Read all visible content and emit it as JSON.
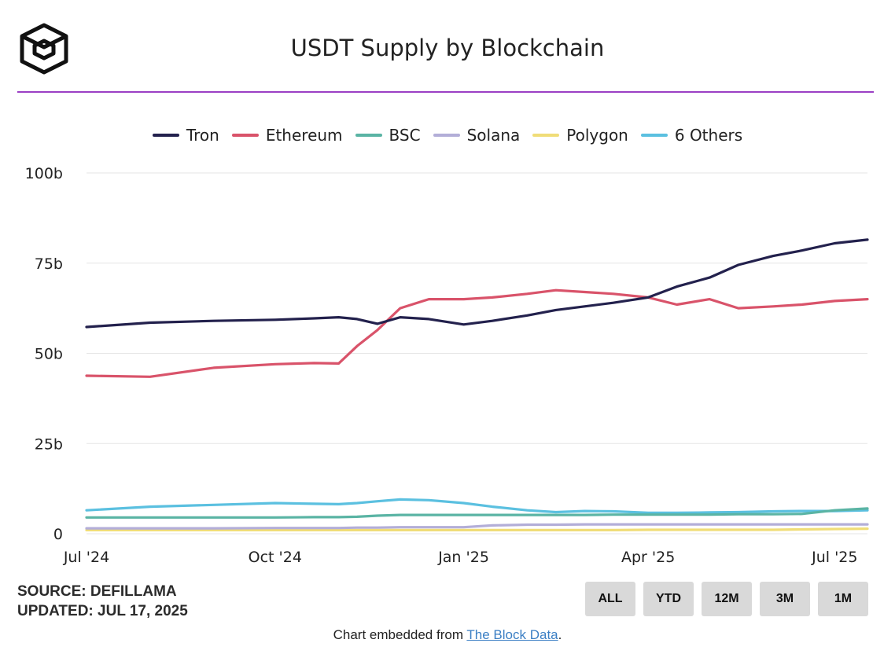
{
  "header": {
    "title": "USDT Supply by Blockchain"
  },
  "source": {
    "line1": "SOURCE: DEFILLAMA",
    "line2": "UPDATED: JUL 17, 2025"
  },
  "range_buttons": [
    "ALL",
    "YTD",
    "12M",
    "3M",
    "1M"
  ],
  "footer": {
    "prefix": "Chart embedded from ",
    "link_text": "The Block Data",
    "suffix": "."
  },
  "colors": {
    "accent_rule": "#9b3fc4",
    "gridline": "#e6e6e6"
  },
  "chart_data": {
    "type": "line",
    "title": "USDT Supply by Blockchain",
    "xlabel": "",
    "ylabel": "",
    "ylim": [
      0,
      100
    ],
    "y_ticks": [
      0,
      25,
      50,
      75,
      100
    ],
    "y_tick_labels": [
      "0",
      "25b",
      "50b",
      "75b",
      "100b"
    ],
    "xlim": [
      "2024-07-01",
      "2025-07-17"
    ],
    "x_ticks": [
      "2024-07-01",
      "2024-10-01",
      "2025-01-01",
      "2025-04-01",
      "2025-07-01"
    ],
    "x_tick_labels": [
      "Jul '24",
      "Oct '24",
      "Jan '25",
      "Apr '25",
      "Jul '25"
    ],
    "grid": true,
    "legend_position": "top",
    "x": [
      "2024-07-01",
      "2024-08-01",
      "2024-09-01",
      "2024-10-01",
      "2024-10-20",
      "2024-11-01",
      "2024-11-10",
      "2024-11-20",
      "2024-12-01",
      "2024-12-15",
      "2025-01-01",
      "2025-01-15",
      "2025-02-01",
      "2025-02-15",
      "2025-03-01",
      "2025-03-15",
      "2025-04-01",
      "2025-04-15",
      "2025-05-01",
      "2025-05-15",
      "2025-06-01",
      "2025-06-15",
      "2025-07-01",
      "2025-07-17"
    ],
    "series": [
      {
        "name": "Tron",
        "color": "#23214d",
        "values": [
          57.3,
          58.5,
          59.0,
          59.3,
          59.7,
          60.0,
          59.5,
          58.2,
          60.0,
          59.5,
          58.0,
          59.0,
          60.5,
          62.0,
          63.0,
          64.0,
          65.5,
          68.5,
          71.0,
          74.5,
          77.0,
          78.5,
          80.5,
          81.5
        ]
      },
      {
        "name": "Ethereum",
        "color": "#d9536a",
        "values": [
          43.8,
          43.5,
          46.0,
          47.0,
          47.3,
          47.2,
          52.0,
          56.5,
          62.5,
          65.0,
          65.0,
          65.5,
          66.5,
          67.5,
          67.0,
          66.5,
          65.5,
          63.5,
          65.0,
          62.5,
          63.0,
          63.5,
          64.5,
          65.0
        ]
      },
      {
        "name": "BSC",
        "color": "#5ab4a4",
        "values": [
          4.5,
          4.5,
          4.5,
          4.5,
          4.6,
          4.6,
          4.7,
          5.0,
          5.2,
          5.2,
          5.2,
          5.2,
          5.2,
          5.2,
          5.2,
          5.3,
          5.3,
          5.3,
          5.3,
          5.4,
          5.4,
          5.5,
          6.5,
          7.0
        ]
      },
      {
        "name": "Solana",
        "color": "#b3aed8",
        "values": [
          1.5,
          1.5,
          1.5,
          1.6,
          1.6,
          1.6,
          1.7,
          1.7,
          1.8,
          1.8,
          1.8,
          2.3,
          2.5,
          2.5,
          2.6,
          2.6,
          2.6,
          2.6,
          2.6,
          2.6,
          2.6,
          2.6,
          2.6,
          2.6
        ]
      },
      {
        "name": "Polygon",
        "color": "#f0dd78",
        "values": [
          1.0,
          1.0,
          1.0,
          1.0,
          1.0,
          1.0,
          1.0,
          1.0,
          1.0,
          1.0,
          1.0,
          1.0,
          1.0,
          1.0,
          1.0,
          1.0,
          1.1,
          1.1,
          1.1,
          1.1,
          1.1,
          1.2,
          1.3,
          1.4
        ]
      },
      {
        "name": "6 Others",
        "color": "#5bc0e0",
        "values": [
          6.5,
          7.5,
          8.0,
          8.5,
          8.3,
          8.2,
          8.5,
          9.0,
          9.5,
          9.3,
          8.5,
          7.5,
          6.5,
          6.0,
          6.3,
          6.2,
          5.8,
          5.8,
          5.9,
          6.0,
          6.2,
          6.3,
          6.3,
          6.5
        ]
      }
    ]
  }
}
